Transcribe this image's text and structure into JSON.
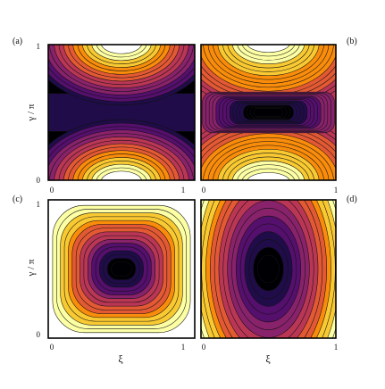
{
  "chart_data": [
    {
      "type": "contour",
      "panel_label": "(a)",
      "xlabel": "",
      "ylabel": "γ / π",
      "x_range": [
        0,
        1
      ],
      "y_range": [
        0,
        1
      ],
      "x_ticks": [
        "0",
        "1"
      ],
      "y_ticks": [
        "0",
        "1"
      ],
      "colormap": "inferno",
      "pattern": "bright at top and bottom centre, dark band along the middle"
    },
    {
      "type": "contour",
      "panel_label": "(b)",
      "xlabel": "",
      "ylabel": "",
      "x_range": [
        0,
        1
      ],
      "y_range": [
        0,
        1
      ],
      "x_ticks": [
        "0",
        "1"
      ],
      "y_ticks": [],
      "colormap": "inferno",
      "pattern": "bright at top and bottom centre, dark elongated minimum at centre"
    },
    {
      "type": "contour",
      "panel_label": "(c)",
      "xlabel": "ξ",
      "ylabel": "γ / π",
      "x_range": [
        0,
        1
      ],
      "y_range": [
        0,
        1
      ],
      "x_ticks": [
        "0",
        "1"
      ],
      "y_ticks": [
        "0",
        "1"
      ],
      "colormap": "inferno",
      "pattern": "dark minimum at centre, bright toward edges, white border"
    },
    {
      "type": "contour",
      "panel_label": "(d)",
      "xlabel": "ξ",
      "ylabel": "",
      "x_range": [
        0,
        1
      ],
      "y_range": [
        0,
        1
      ],
      "x_ticks": [
        "0",
        "1"
      ],
      "y_ticks": [],
      "colormap": "inferno",
      "pattern": "dark minimum at centre, bright toward left and right edges"
    }
  ],
  "colors": {
    "scale": [
      "#000004",
      "#1f0c48",
      "#550f6d",
      "#88226a",
      "#ba3655",
      "#e35933",
      "#f98c0a",
      "#f9c932",
      "#fcffa4",
      "#ffffff"
    ],
    "contour_line": "#111111",
    "frame": "#000000"
  }
}
